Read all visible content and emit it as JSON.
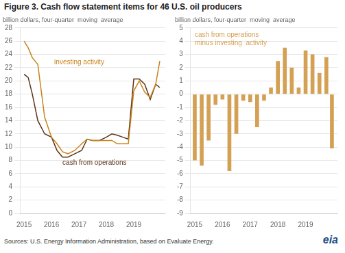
{
  "title": "Figure 3. Cash flow statement items for 46 U.S. oil producers",
  "annotations": [
    {
      "text": "Sources: U.S. Energy Information Administration, based on Evaluate Energy.",
      "color": "#333333"
    },
    {
      "text": "eia",
      "color": "#1a4f8a"
    }
  ],
  "chart_data": [
    {
      "type": "line",
      "ylabel": "billion dollars, four-quarter  moving  average",
      "x": [
        2015.0,
        2015.15,
        2015.3,
        2015.5,
        2015.75,
        2016.0,
        2016.2,
        2016.4,
        2016.6,
        2016.85,
        2017.1,
        2017.3,
        2017.5,
        2017.75,
        2018.0,
        2018.2,
        2018.4,
        2018.6,
        2018.8,
        2019.0,
        2019.2,
        2019.4,
        2019.6,
        2019.8,
        2019.95
      ],
      "series": [
        {
          "color": "#c8841a",
          "values": [
            26.0,
            25.0,
            23.5,
            22.5,
            14.5,
            11.5,
            10.5,
            9.3,
            9.0,
            9.5,
            10.5,
            11.2,
            11.0,
            11.0,
            11.0,
            11.0,
            10.5,
            10.5,
            10.5,
            18.5,
            20.0,
            18.3,
            17.5,
            19.5,
            23.0
          ]
        },
        {
          "color": "#5c3317",
          "values": [
            21.0,
            20.5,
            18.0,
            14.0,
            12.0,
            11.5,
            9.5,
            8.5,
            8.5,
            9.0,
            9.5,
            11.2,
            11.0,
            11.0,
            11.5,
            12.0,
            11.8,
            11.5,
            11.2,
            20.3,
            20.3,
            19.5,
            17.2,
            19.5,
            19.0
          ]
        }
      ],
      "annotations": [
        {
          "text": "investing activity",
          "x": 2016.1,
          "y": 22.5,
          "color": "#c8841a"
        },
        {
          "text": "cash from operations",
          "x": 2016.4,
          "y": 7.3,
          "color": "#5c3317"
        }
      ],
      "xlim": [
        2014.85,
        2020.15
      ],
      "xticks": [
        2015,
        2016,
        2017,
        2018,
        2019
      ],
      "ylim": [
        0,
        28
      ],
      "yticks": [
        0,
        2,
        4,
        6,
        8,
        10,
        12,
        14,
        16,
        18,
        20,
        22,
        24,
        26,
        28
      ],
      "grid": true
    },
    {
      "type": "bar",
      "ylabel": "billion dollars, four-quarter  moving  average",
      "x": [
        2015.0,
        2015.25,
        2015.5,
        2015.75,
        2016.0,
        2016.25,
        2016.5,
        2016.75,
        2017.0,
        2017.25,
        2017.5,
        2017.75,
        2018.0,
        2018.25,
        2018.5,
        2018.75,
        2019.0,
        2019.25,
        2019.5,
        2019.75,
        2019.95
      ],
      "values": [
        -5.0,
        -5.4,
        -3.5,
        -0.8,
        -0.4,
        -5.8,
        -3.0,
        -0.5,
        -0.6,
        -2.5,
        -0.5,
        0.5,
        2.5,
        3.5,
        2.0,
        0.5,
        3.3,
        3.0,
        1.6,
        2.8,
        -4.1
      ],
      "color": "#d4a054",
      "annotations": [
        {
          "text": "cash from operations\nminus investing  activity",
          "x": 2015.0,
          "y": 4.7,
          "color": "#d4a054"
        }
      ],
      "xlim": [
        2014.85,
        2020.15
      ],
      "xticks": [
        2015,
        2016,
        2017,
        2018,
        2019
      ],
      "ylim": [
        -9,
        5
      ],
      "yticks": [
        -9,
        -8,
        -7,
        -6,
        -5,
        -4,
        -3,
        -2,
        -1,
        0,
        1,
        2,
        3,
        4,
        5
      ],
      "grid": true
    }
  ]
}
